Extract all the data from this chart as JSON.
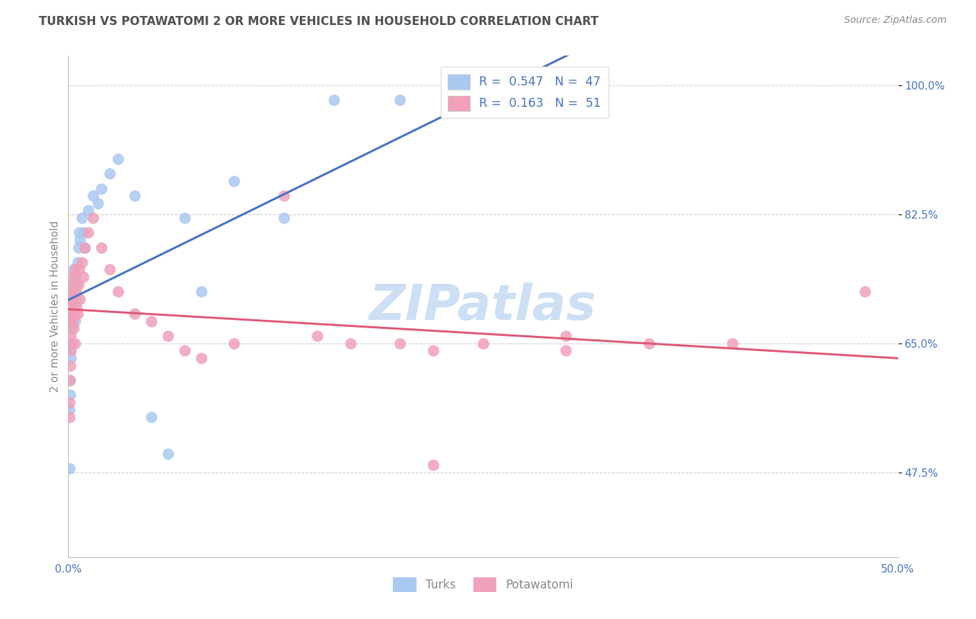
{
  "title": "TURKISH VS POTAWATOMI 2 OR MORE VEHICLES IN HOUSEHOLD CORRELATION CHART",
  "source": "Source: ZipAtlas.com",
  "ylabel": "2 or more Vehicles in Household",
  "x_min": 0.0,
  "x_max": 50.0,
  "y_min": 36.0,
  "y_max": 104.0,
  "y_ticks": [
    47.5,
    65.0,
    82.5,
    100.0
  ],
  "y_tick_labels": [
    "47.5%",
    "65.0%",
    "82.5%",
    "100.0%"
  ],
  "x_ticks": [
    0.0,
    10.0,
    20.0,
    30.0,
    40.0,
    50.0
  ],
  "x_tick_labels": [
    "0.0%",
    "",
    "",
    "",
    "",
    "50.0%"
  ],
  "r_turks": 0.547,
  "n_turks": 47,
  "r_pota": 0.163,
  "n_pota": 51,
  "color_turks": "#a8c8f0",
  "color_pota": "#f0a0b8",
  "color_turks_line": "#4472c4",
  "color_pota_line": "#e05878",
  "color_title": "#505050",
  "color_source": "#888888",
  "color_ticks": "#4472c4",
  "color_axis_label": "#888888",
  "color_grid": "#cccccc",
  "color_watermark": "#ccdff5",
  "watermark": "ZIPatlas",
  "legend_label_turks": "Turks",
  "legend_label_pota": "Potawatomi",
  "turks_x": [
    0.05,
    0.07,
    0.08,
    0.1,
    0.1,
    0.12,
    0.13,
    0.15,
    0.15,
    0.17,
    0.18,
    0.2,
    0.22,
    0.25,
    0.28,
    0.3,
    0.32,
    0.35,
    0.38,
    0.4,
    0.42,
    0.45,
    0.5,
    0.55,
    0.6,
    0.65,
    0.7,
    0.8,
    0.9,
    1.0,
    1.2,
    1.5,
    1.8,
    2.0,
    2.5,
    3.0,
    4.0,
    5.0,
    6.0,
    7.0,
    8.0,
    10.0,
    13.0,
    16.0,
    20.0,
    25.0,
    28.0
  ],
  "turks_y": [
    48.0,
    56.0,
    64.0,
    58.0,
    60.0,
    65.0,
    63.0,
    67.0,
    69.0,
    71.0,
    65.0,
    70.0,
    68.0,
    72.0,
    73.0,
    75.0,
    70.0,
    69.0,
    72.0,
    74.0,
    68.0,
    73.0,
    71.0,
    76.0,
    78.0,
    80.0,
    79.0,
    82.0,
    80.0,
    78.0,
    83.0,
    85.0,
    84.0,
    86.0,
    88.0,
    90.0,
    85.0,
    55.0,
    50.0,
    82.0,
    72.0,
    87.0,
    82.0,
    98.0,
    98.0,
    96.5,
    97.0
  ],
  "pota_x": [
    0.05,
    0.07,
    0.08,
    0.1,
    0.12,
    0.13,
    0.15,
    0.15,
    0.17,
    0.18,
    0.2,
    0.22,
    0.25,
    0.28,
    0.3,
    0.32,
    0.35,
    0.38,
    0.4,
    0.45,
    0.5,
    0.55,
    0.6,
    0.65,
    0.7,
    0.8,
    0.9,
    1.0,
    1.2,
    1.5,
    2.0,
    2.5,
    3.0,
    4.0,
    5.0,
    6.0,
    7.0,
    8.0,
    10.0,
    13.0,
    15.0,
    17.0,
    20.0,
    22.0,
    25.0,
    30.0,
    30.0,
    35.0,
    40.0,
    48.0,
    22.0
  ],
  "pota_y": [
    55.0,
    60.0,
    57.0,
    62.0,
    65.0,
    64.0,
    68.0,
    70.0,
    66.0,
    69.0,
    72.0,
    68.0,
    71.0,
    74.0,
    67.0,
    73.0,
    69.0,
    65.0,
    75.0,
    72.0,
    70.0,
    69.0,
    73.0,
    75.0,
    71.0,
    76.0,
    74.0,
    78.0,
    80.0,
    82.0,
    78.0,
    75.0,
    72.0,
    69.0,
    68.0,
    66.0,
    64.0,
    63.0,
    65.0,
    85.0,
    66.0,
    65.0,
    65.0,
    64.0,
    65.0,
    64.0,
    66.0,
    65.0,
    65.0,
    72.0,
    48.5
  ]
}
